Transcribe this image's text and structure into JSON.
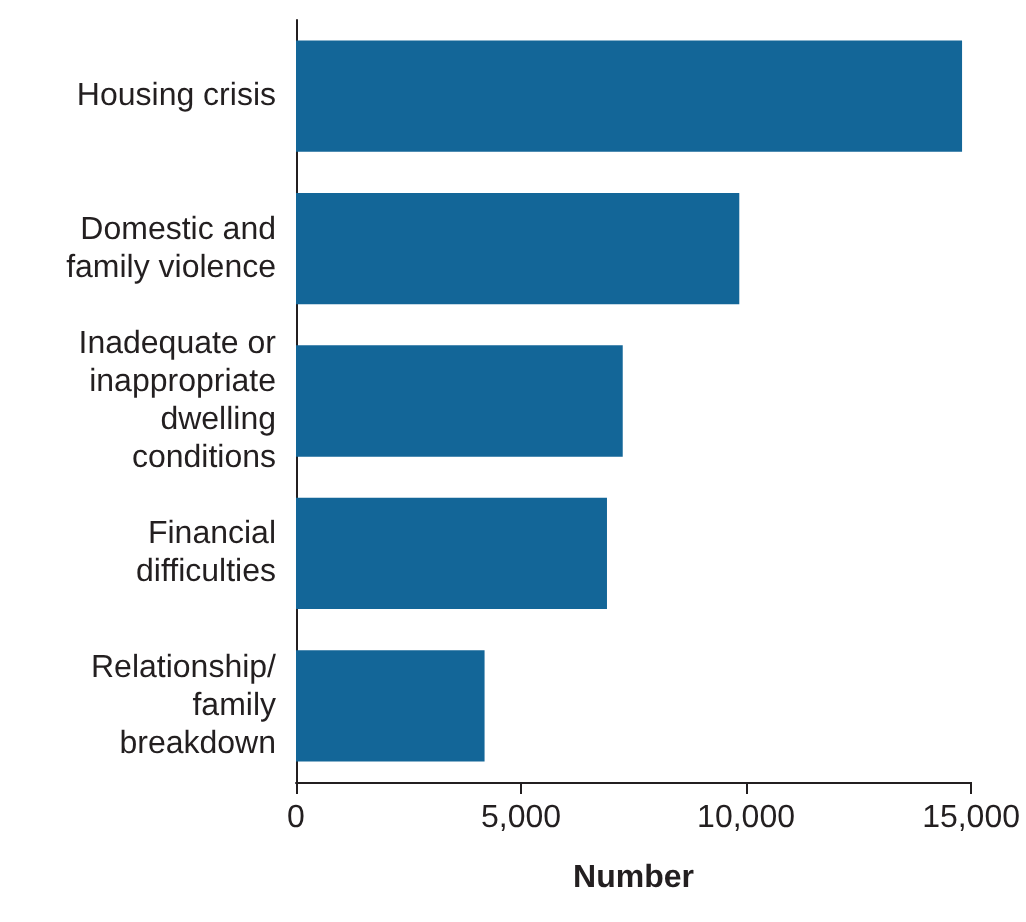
{
  "chart_data": {
    "type": "bar",
    "orientation": "horizontal",
    "xlabel": "Number",
    "categories": [
      "Housing crisis",
      "Domestic and\nfamily violence",
      "Inadequate or\ninappropriate\ndwelling\nconditions",
      "Financial\ndifficulties",
      "Relationship/\nfamily\nbreakdown"
    ],
    "values": [
      14800,
      9850,
      7260,
      6910,
      4190
    ],
    "color": "#136698",
    "xlim": [
      0,
      15000
    ],
    "xticks": [
      0,
      {
        "value": 5000,
        "label": "5,000"
      },
      {
        "value": 10000,
        "label": "10,000"
      },
      {
        "value": 15000,
        "label": "15,000"
      }
    ]
  }
}
